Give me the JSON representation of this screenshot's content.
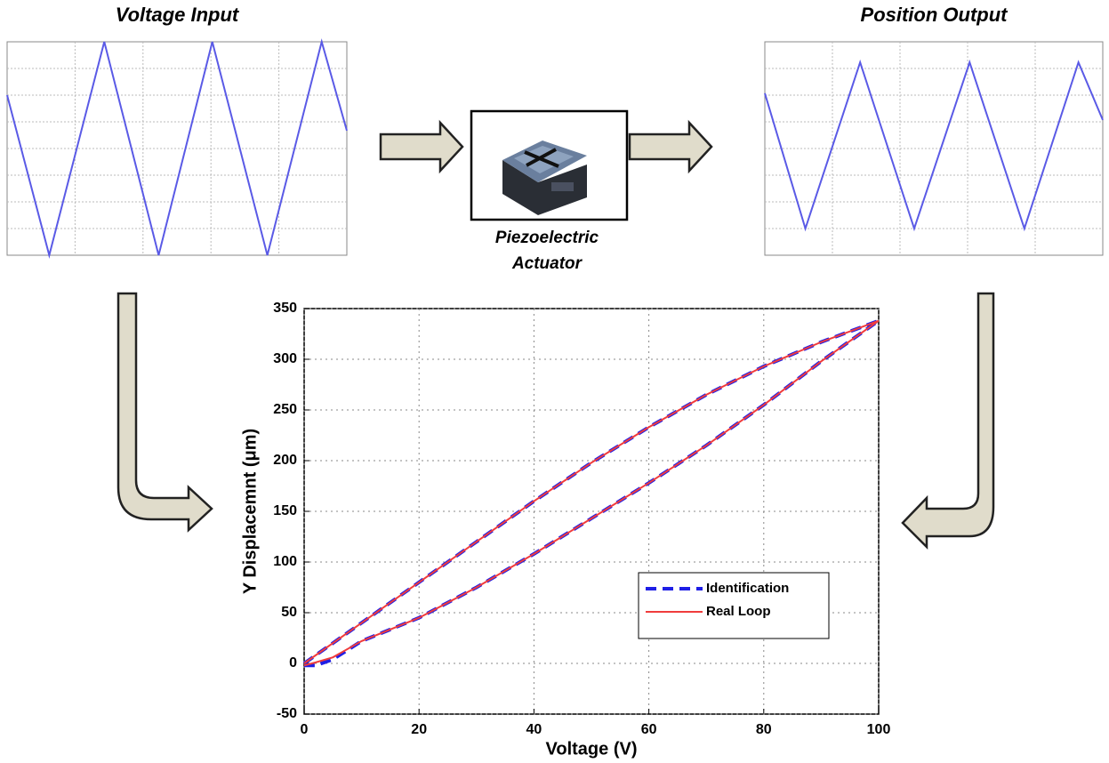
{
  "chart_data": [
    {
      "type": "line",
      "title": "Voltage Input",
      "xlim": [
        0,
        5
      ],
      "ylim": [
        0,
        8
      ],
      "xticks": [
        1,
        2,
        3,
        4
      ],
      "yticks": [
        1,
        2,
        3,
        4,
        5,
        6,
        7
      ],
      "grid": true,
      "tick_labels": false,
      "x": [
        0,
        0.62,
        1.43,
        2.23,
        3.02,
        3.83,
        4.63,
        5.0
      ],
      "series": [
        {
          "color": "#5a5ae6",
          "values": [
            6,
            0,
            8,
            0,
            8,
            0,
            8,
            4.67
          ]
        }
      ]
    },
    {
      "type": "line",
      "title": "Position Output",
      "xlim": [
        0,
        5
      ],
      "ylim": [
        0,
        8
      ],
      "xticks": [
        1,
        2,
        3,
        4
      ],
      "yticks": [
        1,
        2,
        3,
        4,
        5,
        6,
        7
      ],
      "grid": true,
      "tick_labels": false,
      "x": [
        0,
        0.6,
        1.41,
        2.21,
        3.03,
        3.84,
        4.64,
        5.0
      ],
      "series": [
        {
          "color": "#5a5ae6",
          "values": [
            6.07,
            1,
            7.23,
            1,
            7.23,
            1,
            7.23,
            5.07
          ]
        }
      ]
    },
    {
      "type": "line",
      "xlabel": "Voltage (V)",
      "ylabel": "Y Displacemnt (μm)",
      "xlim": [
        0,
        100
      ],
      "ylim": [
        -50,
        350
      ],
      "xticks": [
        0,
        20,
        40,
        60,
        80,
        100
      ],
      "yticks": [
        -50,
        0,
        50,
        100,
        150,
        200,
        250,
        300,
        350
      ],
      "grid": true,
      "legend": "lower right",
      "x": [
        0,
        10,
        20,
        30,
        40,
        50,
        60,
        70,
        80,
        90,
        100,
        90,
        80,
        70,
        60,
        50,
        40,
        30,
        20,
        10,
        5,
        2,
        0
      ],
      "series": [
        {
          "name": "Identification",
          "color": "#1f1fe6",
          "linestyle": "dashed",
          "values": [
            0,
            40,
            80,
            120,
            160,
            198,
            233,
            265,
            293,
            317,
            338,
            298,
            255,
            215,
            178,
            143,
            108,
            75,
            45,
            22,
            4,
            -2,
            -2
          ]
        },
        {
          "name": "Real Loop",
          "color": "#f03c3c",
          "linestyle": "solid",
          "values": [
            0,
            40,
            80,
            120,
            160,
            198,
            233,
            265,
            293,
            317,
            338,
            298,
            255,
            215,
            178,
            143,
            108,
            75,
            45,
            22,
            6,
            1,
            -2
          ]
        }
      ]
    }
  ],
  "actuator": {
    "label_lines": [
      "Piezoelectric",
      "Actuator"
    ]
  }
}
